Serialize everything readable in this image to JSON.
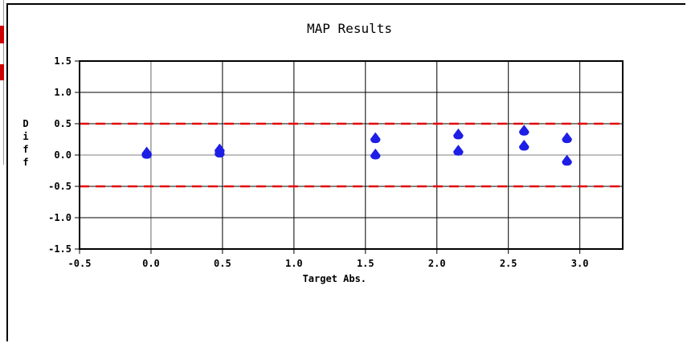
{
  "chart_data": {
    "type": "scatter",
    "title": "MAP Results",
    "xlabel": "Target Abs.",
    "ylabel": "Diff",
    "xlim": [
      -0.5,
      3.3
    ],
    "ylim": [
      -1.5,
      1.5
    ],
    "xticks": [
      "-0.5",
      "0.0",
      "0.5",
      "1.0",
      "1.5",
      "2.0",
      "2.5",
      "3.0"
    ],
    "xtick_values": [
      -0.5,
      0.0,
      0.5,
      1.0,
      1.5,
      2.0,
      2.5,
      3.0
    ],
    "yticks": [
      "1.5",
      "1.0",
      "0.5",
      "0.0",
      "-0.5",
      "-1.0",
      "-1.5"
    ],
    "ytick_values": [
      1.5,
      1.0,
      0.5,
      0.0,
      -0.5,
      -1.0,
      -1.5
    ],
    "grid": true,
    "marker_color": "#1e1ee6",
    "reference_lines": [
      {
        "y": 0.5,
        "color": "#e60000",
        "style": "dashed"
      },
      {
        "y": -0.5,
        "color": "#e60000",
        "style": "dashed"
      }
    ],
    "points": [
      {
        "x": -0.03,
        "y": 0.04
      },
      {
        "x": -0.03,
        "y": 0.02
      },
      {
        "x": 0.48,
        "y": 0.09
      },
      {
        "x": 0.48,
        "y": 0.04
      },
      {
        "x": 1.57,
        "y": 0.27
      },
      {
        "x": 1.57,
        "y": 0.01
      },
      {
        "x": 2.15,
        "y": 0.33
      },
      {
        "x": 2.15,
        "y": 0.07
      },
      {
        "x": 2.61,
        "y": 0.39
      },
      {
        "x": 2.61,
        "y": 0.15
      },
      {
        "x": 2.91,
        "y": 0.27
      },
      {
        "x": 2.91,
        "y": -0.09
      }
    ]
  }
}
